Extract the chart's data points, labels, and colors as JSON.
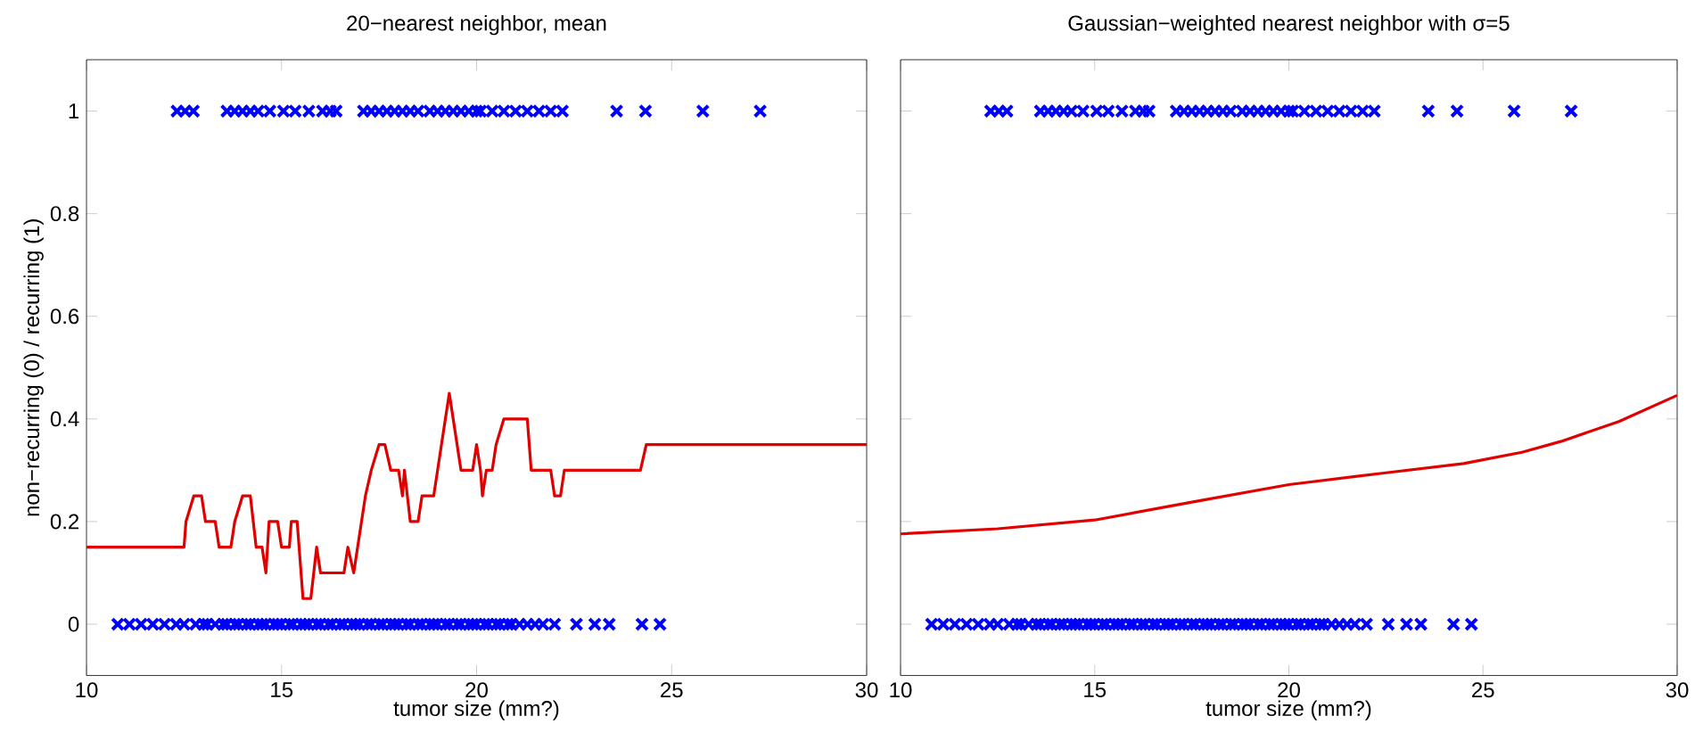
{
  "chart_data": [
    {
      "type": "scatter",
      "title": "20−nearest neighbor, mean",
      "xlabel": "tumor size (mm?)",
      "ylabel": "non−recurring (0) / recurring (1)",
      "xlim": [
        10,
        30
      ],
      "ylim": [
        -0.1,
        1.1
      ],
      "xticks": [
        10,
        15,
        20,
        25,
        30
      ],
      "yticks": [
        0,
        0.2,
        0.4,
        0.6,
        0.8,
        1
      ],
      "marker": "cross",
      "series": [
        {
          "color": "#0000ff",
          "x": [
            12.32,
            12.53,
            12.74,
            13.6,
            13.8,
            14.0,
            14.2,
            14.4,
            14.7,
            15.05,
            15.35,
            15.7,
            16.05,
            16.25,
            16.4,
            17.1,
            17.3,
            17.5,
            17.7,
            17.9,
            18.1,
            18.3,
            18.5,
            18.8,
            19.0,
            19.2,
            19.4,
            19.6,
            19.8,
            20.0,
            20.1,
            20.4,
            20.7,
            21.0,
            21.3,
            21.6,
            21.9,
            22.2,
            23.59,
            24.33,
            25.8,
            27.27,
            10.8,
            11.1,
            11.4,
            11.7,
            12.0,
            12.3,
            12.5,
            12.8,
            13.0,
            13.1,
            13.3,
            13.5,
            13.6,
            13.8,
            13.9,
            14.1,
            14.2,
            14.4,
            14.5,
            14.6,
            14.8,
            14.9,
            15.0,
            15.2,
            15.3,
            15.5,
            15.6,
            15.7,
            15.9,
            16.0,
            16.2,
            16.3,
            16.5,
            16.6,
            16.8,
            16.9,
            17.0,
            17.2,
            17.3,
            17.5,
            17.6,
            17.8,
            17.9,
            18.0,
            18.2,
            18.3,
            18.5,
            18.6,
            18.8,
            18.9,
            19.0,
            19.2,
            19.3,
            19.5,
            19.6,
            19.8,
            19.9,
            20.0,
            20.2,
            20.3,
            20.5,
            20.6,
            20.8,
            20.9,
            21.1,
            21.3,
            21.5,
            21.7,
            22.0,
            22.56,
            23.03,
            23.4,
            24.24,
            24.7
          ],
          "values": [
            1,
            1,
            1,
            1,
            1,
            1,
            1,
            1,
            1,
            1,
            1,
            1,
            1,
            1,
            1,
            1,
            1,
            1,
            1,
            1,
            1,
            1,
            1,
            1,
            1,
            1,
            1,
            1,
            1,
            1,
            1,
            1,
            1,
            1,
            1,
            1,
            1,
            1,
            1,
            1,
            1,
            1,
            0,
            0,
            0,
            0,
            0,
            0,
            0,
            0,
            0,
            0,
            0,
            0,
            0,
            0,
            0,
            0,
            0,
            0,
            0,
            0,
            0,
            0,
            0,
            0,
            0,
            0,
            0,
            0,
            0,
            0,
            0,
            0,
            0,
            0,
            0,
            0,
            0,
            0,
            0,
            0,
            0,
            0,
            0,
            0,
            0,
            0,
            0,
            0,
            0,
            0,
            0,
            0,
            0,
            0,
            0,
            0,
            0,
            0,
            0,
            0,
            0,
            0,
            0,
            0,
            0,
            0,
            0,
            0,
            0,
            0,
            0,
            0,
            0,
            0
          ]
        },
        {
          "type": "line",
          "marker": "none",
          "color": "#e00000",
          "x": [
            10,
            12.5,
            12.55,
            12.75,
            12.95,
            13.05,
            13.3,
            13.4,
            13.7,
            13.8,
            14.0,
            14.2,
            14.35,
            14.5,
            14.6,
            14.68,
            14.9,
            15.0,
            15.2,
            15.25,
            15.4,
            15.55,
            15.75,
            15.9,
            16.0,
            16.6,
            16.7,
            16.85,
            16.95,
            17.05,
            17.15,
            17.3,
            17.5,
            17.65,
            17.8,
            18.0,
            18.1,
            18.15,
            18.3,
            18.5,
            18.6,
            18.9,
            19.0,
            19.1,
            19.3,
            19.5,
            19.6,
            19.9,
            20.0,
            20.1,
            20.15,
            20.25,
            20.4,
            20.5,
            20.7,
            21.3,
            21.4,
            21.9,
            22.0,
            22.15,
            22.25,
            24.2,
            24.35,
            30
          ],
          "values": [
            0.15,
            0.15,
            0.2,
            0.25,
            0.25,
            0.2,
            0.2,
            0.15,
            0.15,
            0.2,
            0.25,
            0.25,
            0.15,
            0.15,
            0.1,
            0.2,
            0.2,
            0.15,
            0.15,
            0.2,
            0.2,
            0.05,
            0.05,
            0.15,
            0.1,
            0.1,
            0.15,
            0.1,
            0.15,
            0.2,
            0.25,
            0.3,
            0.35,
            0.35,
            0.3,
            0.3,
            0.25,
            0.3,
            0.2,
            0.2,
            0.25,
            0.25,
            0.3,
            0.35,
            0.45,
            0.35,
            0.3,
            0.3,
            0.35,
            0.3,
            0.25,
            0.3,
            0.3,
            0.35,
            0.4,
            0.4,
            0.3,
            0.3,
            0.25,
            0.25,
            0.3,
            0.3,
            0.35,
            0.35
          ]
        }
      ]
    },
    {
      "type": "scatter",
      "title": "Gaussian−weighted nearest neighbor with σ=5",
      "xlabel": "tumor size (mm?)",
      "xlim": [
        10,
        30
      ],
      "ylim": [
        -0.1,
        1.1
      ],
      "xticks": [
        10,
        15,
        20,
        25,
        30
      ],
      "yticks": [
        0,
        0.2,
        0.4,
        0.6,
        0.8,
        1
      ],
      "marker": "cross",
      "tick_labels": "x",
      "series": [
        {
          "color": "#0000ff",
          "x": [
            12.32,
            12.53,
            12.74,
            13.6,
            13.8,
            14.0,
            14.2,
            14.4,
            14.7,
            15.05,
            15.35,
            15.7,
            16.05,
            16.25,
            16.4,
            17.1,
            17.3,
            17.5,
            17.7,
            17.9,
            18.1,
            18.3,
            18.5,
            18.8,
            19.0,
            19.2,
            19.4,
            19.6,
            19.8,
            20.0,
            20.1,
            20.4,
            20.7,
            21.0,
            21.3,
            21.6,
            21.9,
            22.2,
            23.59,
            24.33,
            25.8,
            27.27,
            10.8,
            11.1,
            11.4,
            11.7,
            12.0,
            12.3,
            12.5,
            12.8,
            13.0,
            13.1,
            13.3,
            13.5,
            13.6,
            13.8,
            13.9,
            14.1,
            14.2,
            14.4,
            14.5,
            14.6,
            14.8,
            14.9,
            15.0,
            15.2,
            15.3,
            15.5,
            15.6,
            15.7,
            15.9,
            16.0,
            16.2,
            16.3,
            16.5,
            16.6,
            16.8,
            16.9,
            17.0,
            17.2,
            17.3,
            17.5,
            17.6,
            17.8,
            17.9,
            18.0,
            18.2,
            18.3,
            18.5,
            18.6,
            18.8,
            18.9,
            19.0,
            19.2,
            19.3,
            19.5,
            19.6,
            19.8,
            19.9,
            20.0,
            20.2,
            20.3,
            20.5,
            20.6,
            20.8,
            20.9,
            21.1,
            21.3,
            21.5,
            21.7,
            22.0,
            22.56,
            23.03,
            23.4,
            24.24,
            24.7
          ],
          "values": [
            1,
            1,
            1,
            1,
            1,
            1,
            1,
            1,
            1,
            1,
            1,
            1,
            1,
            1,
            1,
            1,
            1,
            1,
            1,
            1,
            1,
            1,
            1,
            1,
            1,
            1,
            1,
            1,
            1,
            1,
            1,
            1,
            1,
            1,
            1,
            1,
            1,
            1,
            1,
            1,
            1,
            1,
            0,
            0,
            0,
            0,
            0,
            0,
            0,
            0,
            0,
            0,
            0,
            0,
            0,
            0,
            0,
            0,
            0,
            0,
            0,
            0,
            0,
            0,
            0,
            0,
            0,
            0,
            0,
            0,
            0,
            0,
            0,
            0,
            0,
            0,
            0,
            0,
            0,
            0,
            0,
            0,
            0,
            0,
            0,
            0,
            0,
            0,
            0,
            0,
            0,
            0,
            0,
            0,
            0,
            0,
            0,
            0,
            0,
            0,
            0,
            0,
            0,
            0,
            0,
            0,
            0,
            0,
            0,
            0,
            0,
            0,
            0,
            0,
            0,
            0
          ]
        },
        {
          "type": "line",
          "marker": "none",
          "color": "#e00000",
          "x": [
            10,
            12.5,
            15,
            17.5,
            20,
            22.5,
            24.5,
            26,
            27,
            28.5,
            30
          ],
          "values": [
            0.176,
            0.186,
            0.203,
            0.238,
            0.272,
            0.295,
            0.313,
            0.335,
            0.356,
            0.395,
            0.446
          ]
        }
      ]
    }
  ]
}
